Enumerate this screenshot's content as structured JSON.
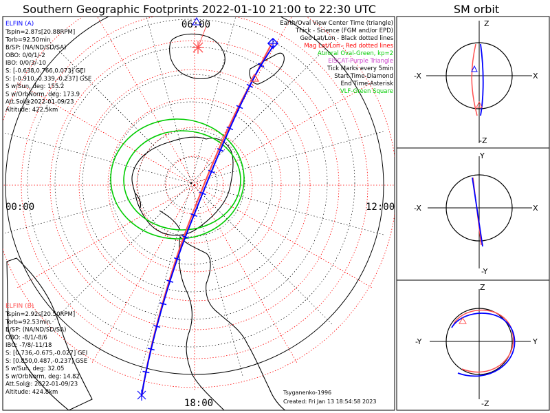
{
  "title": "Southern Geographic Footprints 2022-01-10 21:00 to 22:30 UTC",
  "sm_title": "SM orbit",
  "legend": [
    {
      "text": "Earth/Oval View Center Time (triangle)",
      "color": "#000000"
    },
    {
      "text": "Thick - Science (FGM and/or EPD)",
      "color": "#000000"
    },
    {
      "text": "Geo Lat/Lon - Black dotted lines",
      "color": "#000000"
    },
    {
      "text": "Mag Lat/Lon - Red dotted lines",
      "color": "#ff0000"
    },
    {
      "text": "Auroral Oval-Green, kp=2",
      "color": "#00cc00"
    },
    {
      "text": "EISCAT-Purple Triangle",
      "color": "#cc44cc"
    },
    {
      "text": "Tick Marks every 5min",
      "color": "#000000"
    },
    {
      "text": "Start Time-Diamond",
      "color": "#000000"
    },
    {
      "text": "End Time-Asterisk",
      "color": "#000000"
    },
    {
      "text": "VLF-Green Square",
      "color": "#00cc00"
    }
  ],
  "elfin_a": {
    "header": "ELFIN (A)",
    "color": "#0000ff",
    "lines": [
      "Tspin=2.87s[20.88RPM]",
      "Torb=92.50min",
      "B/SP: (NA/ND/SD/SA)",
      "OBO: 0/0/1/-2",
      "IBO: 0/0/3/-10",
      "S: [-0.638,0.766,0.073] GEI",
      "S: [-0.910,-0.339,-0.237] GSE",
      "S w/Sun, deg: 155.2",
      "S w/OrbNorm, deg: 173.9",
      "Att.Sol@2022-01-09/23",
      "Altitude: 422.5km"
    ]
  },
  "elfin_b": {
    "header": "ELFIN (B)",
    "color": "#ff5050",
    "lines": [
      "Tspin=2.92s[20.50RPM]",
      "Torb=92.53min",
      "B/SP: (NA/ND/SD/SA)",
      "OBO: -8/1/-8/6",
      "IBO: -7/8/-11/18",
      "S: [0.736,-0.675,-0.027] GEI",
      "S: [0.850,0.487,-0.237] GSE",
      "S w/Sun, deg: 32.05",
      "S w/OrbNorm, deg: 14.82",
      "Att.Sol@: 2022-01-09/23",
      "Altitude: 424.8km"
    ]
  },
  "mlt_labels": {
    "top": "06:00",
    "left": "00:00",
    "right": "12:00",
    "bottom": "18:00"
  },
  "footer": {
    "author": "Tsyganenko-1996",
    "created": "Created: Fri Jan 13 18:54:58 2023"
  },
  "sm_panels": [
    {
      "top": "Z",
      "bottom": "-Z",
      "left": "-X",
      "right": "X"
    },
    {
      "top": "Y",
      "bottom": "-Y",
      "left": "-X",
      "right": "X"
    },
    {
      "top": "Z",
      "bottom": "-Z",
      "left": "-Y",
      "right": "Y"
    }
  ],
  "colors": {
    "elfin_a": "#0000ff",
    "elfin_b": "#ff5050",
    "oval": "#00cc00",
    "mag_grid": "#ff0000",
    "geo_grid": "#000000"
  }
}
